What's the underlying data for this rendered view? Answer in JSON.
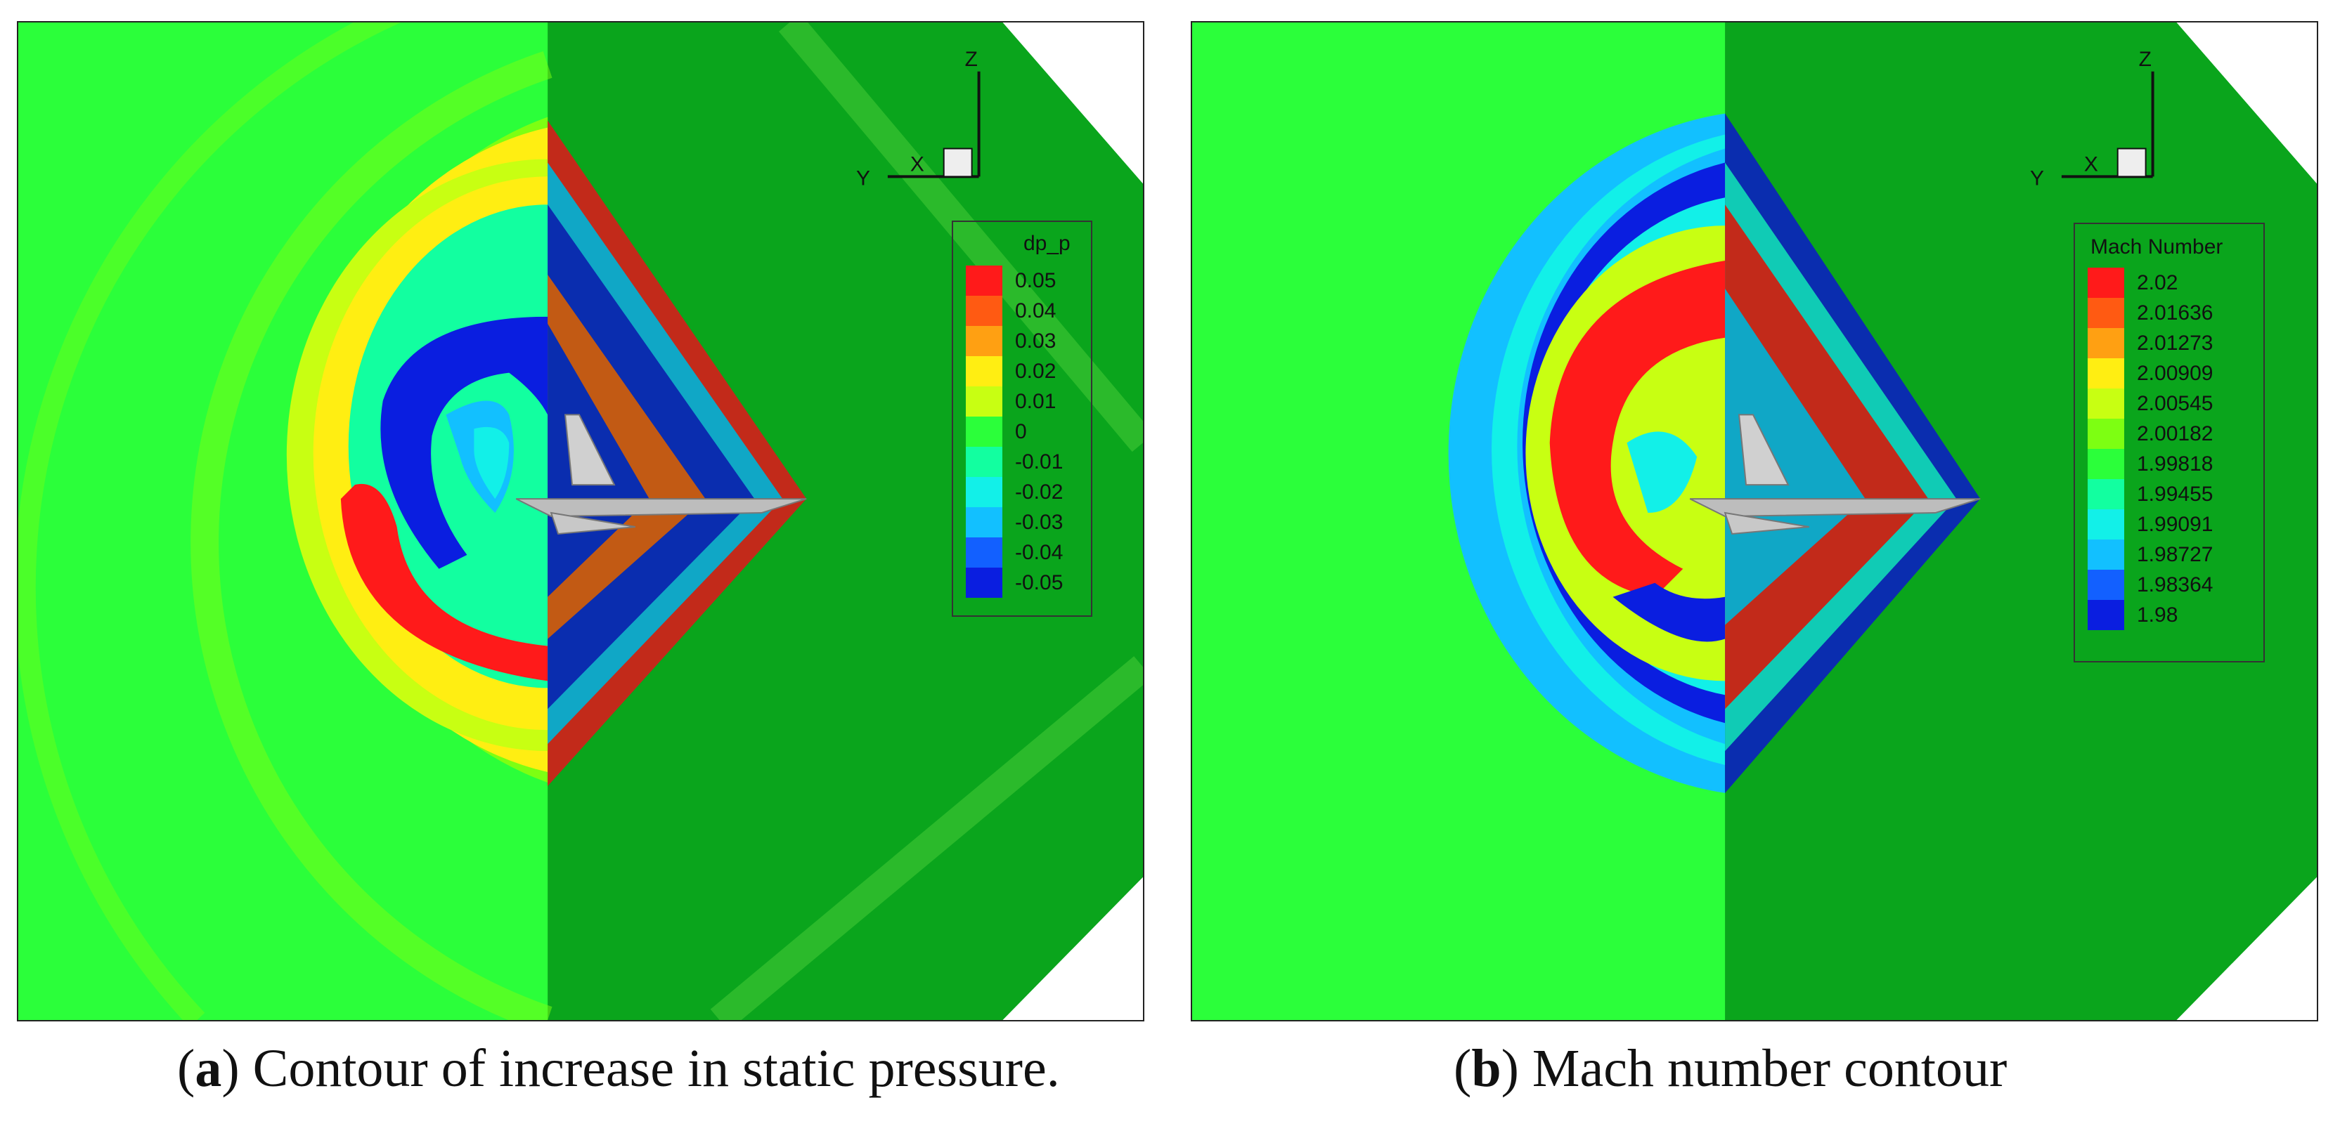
{
  "panels": [
    {
      "id": "a",
      "caption_letter": "a",
      "caption_text": " Contour of increase in static pressure.",
      "legend_title": "dp_p",
      "legend_values": [
        "0.05",
        "0.04",
        "0.03",
        "0.02",
        "0.01",
        "0",
        "-0.01",
        "-0.02",
        "-0.03",
        "-0.04",
        "-0.05"
      ],
      "axes": {
        "z": "Z",
        "y": "Y",
        "x": "X"
      }
    },
    {
      "id": "b",
      "caption_letter": "b",
      "caption_text": " Mach number contour",
      "legend_title": "Mach Number",
      "legend_values": [
        "2.02",
        "2.01636",
        "2.01273",
        "2.00909",
        "2.00545",
        "2.00182",
        "1.99818",
        "1.99455",
        "1.99091",
        "1.98727",
        "1.98364",
        "1.98"
      ],
      "axes": {
        "z": "Z",
        "y": "Y",
        "x": "X"
      }
    }
  ],
  "colors": {
    "background_light_green": "#2bff3a",
    "background_dark_green": "#0aa51c",
    "scale": [
      "#ff1a1a",
      "#ff5a12",
      "#ffa012",
      "#ffee12",
      "#c8ff12",
      "#7dff12",
      "#2bff3a",
      "#12ffa0",
      "#12f0e8",
      "#12c0ff",
      "#1260ff",
      "#0a1ee0"
    ]
  }
}
